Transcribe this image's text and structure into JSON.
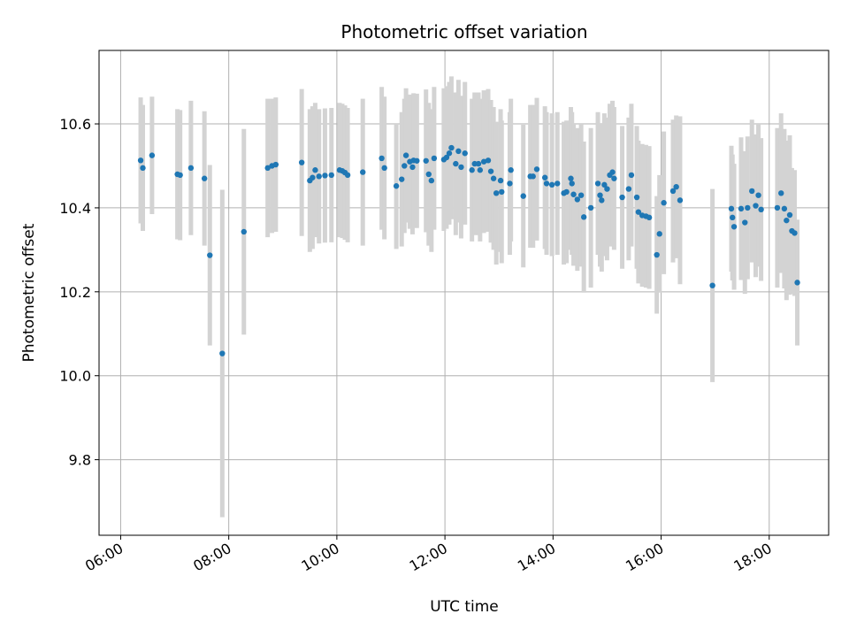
{
  "chart_data": {
    "type": "scatter",
    "title": "Photometric offset variation",
    "xlabel": "UTC time",
    "ylabel": "Photometric offset",
    "x_unit": "hours UTC",
    "xlim": [
      5.6,
      19.1
    ],
    "ylim": [
      9.62,
      10.775
    ],
    "grid": true,
    "x_ticks": [
      6,
      8,
      10,
      12,
      14,
      16,
      18
    ],
    "x_tick_labels": [
      "06:00",
      "08:00",
      "10:00",
      "12:00",
      "14:00",
      "16:00",
      "18:00"
    ],
    "y_ticks": [
      9.8,
      10.0,
      10.2,
      10.4,
      10.6
    ],
    "y_tick_labels": [
      "9.8",
      "10.0",
      "10.2",
      "10.4",
      "10.6"
    ],
    "colors": {
      "marker": "#1f77b4",
      "errorbar": "#d3d3d3",
      "grid": "#b0b0b0"
    },
    "series": [
      {
        "points": [
          [
            6.37,
            10.513,
            0.15
          ],
          [
            6.41,
            10.495,
            0.15
          ],
          [
            6.58,
            10.525,
            0.14
          ],
          [
            7.05,
            10.48,
            0.155
          ],
          [
            7.1,
            10.478,
            0.155
          ],
          [
            7.3,
            10.495,
            0.16
          ],
          [
            7.55,
            10.47,
            0.16
          ],
          [
            7.65,
            10.287,
            0.215
          ],
          [
            7.88,
            10.053,
            0.39
          ],
          [
            8.28,
            10.343,
            0.245
          ],
          [
            8.72,
            10.495,
            0.165
          ],
          [
            8.8,
            10.5,
            0.16
          ],
          [
            8.87,
            10.503,
            0.16
          ],
          [
            9.35,
            10.508,
            0.175
          ],
          [
            9.5,
            10.465,
            0.17
          ],
          [
            9.55,
            10.472,
            0.17
          ],
          [
            9.6,
            10.49,
            0.16
          ],
          [
            9.67,
            10.475,
            0.16
          ],
          [
            9.78,
            10.477,
            0.16
          ],
          [
            9.9,
            10.478,
            0.16
          ],
          [
            10.05,
            10.49,
            0.16
          ],
          [
            10.1,
            10.488,
            0.16
          ],
          [
            10.15,
            10.484,
            0.16
          ],
          [
            10.2,
            10.478,
            0.16
          ],
          [
            10.48,
            10.485,
            0.175
          ],
          [
            10.83,
            10.518,
            0.17
          ],
          [
            10.88,
            10.495,
            0.17
          ],
          [
            11.1,
            10.452,
            0.15
          ],
          [
            11.2,
            10.468,
            0.16
          ],
          [
            11.25,
            10.5,
            0.16
          ],
          [
            11.28,
            10.525,
            0.16
          ],
          [
            11.35,
            10.51,
            0.16
          ],
          [
            11.4,
            10.497,
            0.16
          ],
          [
            11.42,
            10.513,
            0.16
          ],
          [
            11.48,
            10.512,
            0.16
          ],
          [
            11.65,
            10.512,
            0.17
          ],
          [
            11.7,
            10.48,
            0.17
          ],
          [
            11.75,
            10.465,
            0.17
          ],
          [
            11.8,
            10.518,
            0.17
          ],
          [
            11.98,
            10.515,
            0.17
          ],
          [
            12.03,
            10.52,
            0.17
          ],
          [
            12.08,
            10.53,
            0.17
          ],
          [
            12.12,
            10.543,
            0.17
          ],
          [
            12.2,
            10.505,
            0.17
          ],
          [
            12.25,
            10.535,
            0.17
          ],
          [
            12.3,
            10.497,
            0.17
          ],
          [
            12.37,
            10.53,
            0.17
          ],
          [
            12.5,
            10.49,
            0.17
          ],
          [
            12.55,
            10.505,
            0.17
          ],
          [
            12.62,
            10.505,
            0.17
          ],
          [
            12.65,
            10.49,
            0.17
          ],
          [
            12.72,
            10.51,
            0.17
          ],
          [
            12.8,
            10.513,
            0.17
          ],
          [
            12.85,
            10.487,
            0.17
          ],
          [
            12.9,
            10.47,
            0.17
          ],
          [
            12.95,
            10.435,
            0.17
          ],
          [
            13.03,
            10.465,
            0.17
          ],
          [
            13.05,
            10.438,
            0.17
          ],
          [
            13.2,
            10.458,
            0.17
          ],
          [
            13.22,
            10.49,
            0.17
          ],
          [
            13.45,
            10.428,
            0.17
          ],
          [
            13.58,
            10.475,
            0.17
          ],
          [
            13.63,
            10.475,
            0.17
          ],
          [
            13.7,
            10.492,
            0.17
          ],
          [
            13.85,
            10.472,
            0.17
          ],
          [
            13.88,
            10.458,
            0.17
          ],
          [
            13.98,
            10.455,
            0.17
          ],
          [
            14.08,
            10.458,
            0.17
          ],
          [
            14.2,
            10.435,
            0.17
          ],
          [
            14.25,
            10.438,
            0.17
          ],
          [
            14.33,
            10.47,
            0.17
          ],
          [
            14.35,
            10.458,
            0.17
          ],
          [
            14.38,
            10.432,
            0.17
          ],
          [
            14.45,
            10.42,
            0.17
          ],
          [
            14.52,
            10.43,
            0.17
          ],
          [
            14.57,
            10.378,
            0.18
          ],
          [
            14.7,
            10.4,
            0.19
          ],
          [
            14.83,
            10.458,
            0.17
          ],
          [
            14.87,
            10.43,
            0.17
          ],
          [
            14.9,
            10.418,
            0.17
          ],
          [
            14.95,
            10.455,
            0.17
          ],
          [
            15.0,
            10.445,
            0.17
          ],
          [
            15.05,
            10.478,
            0.17
          ],
          [
            15.1,
            10.485,
            0.17
          ],
          [
            15.13,
            10.47,
            0.17
          ],
          [
            15.28,
            10.425,
            0.17
          ],
          [
            15.4,
            10.445,
            0.17
          ],
          [
            15.45,
            10.478,
            0.17
          ],
          [
            15.55,
            10.425,
            0.17
          ],
          [
            15.58,
            10.39,
            0.17
          ],
          [
            15.65,
            10.382,
            0.17
          ],
          [
            15.72,
            10.38,
            0.17
          ],
          [
            15.78,
            10.377,
            0.17
          ],
          [
            15.92,
            10.288,
            0.14
          ],
          [
            15.97,
            10.338,
            0.14
          ],
          [
            16.05,
            10.412,
            0.17
          ],
          [
            16.22,
            10.44,
            0.17
          ],
          [
            16.28,
            10.45,
            0.17
          ],
          [
            16.35,
            10.418,
            0.2
          ],
          [
            16.95,
            10.215,
            0.23
          ],
          [
            17.3,
            10.398,
            0.15
          ],
          [
            17.32,
            10.377,
            0.15
          ],
          [
            17.35,
            10.355,
            0.15
          ],
          [
            17.48,
            10.398,
            0.17
          ],
          [
            17.55,
            10.365,
            0.17
          ],
          [
            17.6,
            10.4,
            0.17
          ],
          [
            17.68,
            10.44,
            0.17
          ],
          [
            17.75,
            10.405,
            0.17
          ],
          [
            17.8,
            10.43,
            0.17
          ],
          [
            17.85,
            10.396,
            0.17
          ],
          [
            18.15,
            10.4,
            0.19
          ],
          [
            18.22,
            10.435,
            0.19
          ],
          [
            18.28,
            10.398,
            0.19
          ],
          [
            18.32,
            10.37,
            0.19
          ],
          [
            18.38,
            10.383,
            0.19
          ],
          [
            18.42,
            10.345,
            0.15
          ],
          [
            18.47,
            10.34,
            0.15
          ],
          [
            18.52,
            10.222,
            0.15
          ]
        ]
      }
    ]
  }
}
